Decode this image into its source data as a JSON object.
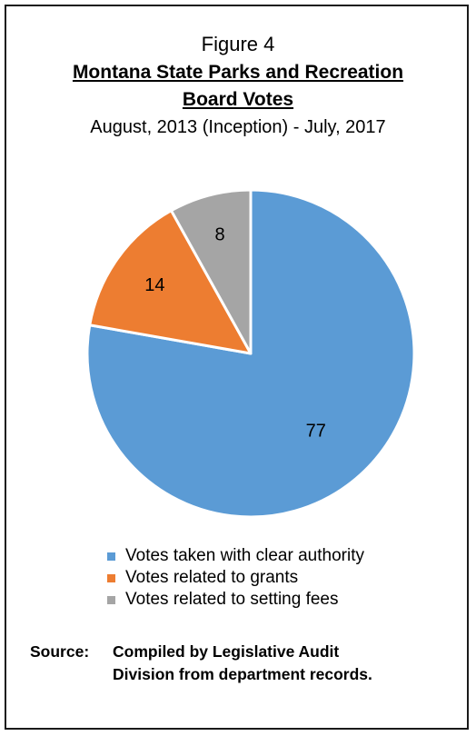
{
  "figure_label": "Figure 4",
  "title_line1": "Montana State Parks and Recreation",
  "title_line2": "Board Votes",
  "subtitle": "August, 2013 (Inception) - July, 2017",
  "chart_data": {
    "type": "pie",
    "title": "Montana State Parks and Recreation Board Votes",
    "subtitle": "August, 2013 (Inception) - July, 2017",
    "slices": [
      {
        "label": "Votes taken with clear authority",
        "value": 77,
        "color": "#5b9bd5"
      },
      {
        "label": "Votes related to grants",
        "value": 14,
        "color": "#ed7d31"
      },
      {
        "label": "Votes related to setting fees",
        "value": 8,
        "color": "#a5a5a5"
      }
    ],
    "legend_position": "bottom",
    "data_labels": true
  },
  "source": {
    "lead": "Source:",
    "line1": "Compiled by Legislative Audit",
    "line2": "Division from department records."
  }
}
